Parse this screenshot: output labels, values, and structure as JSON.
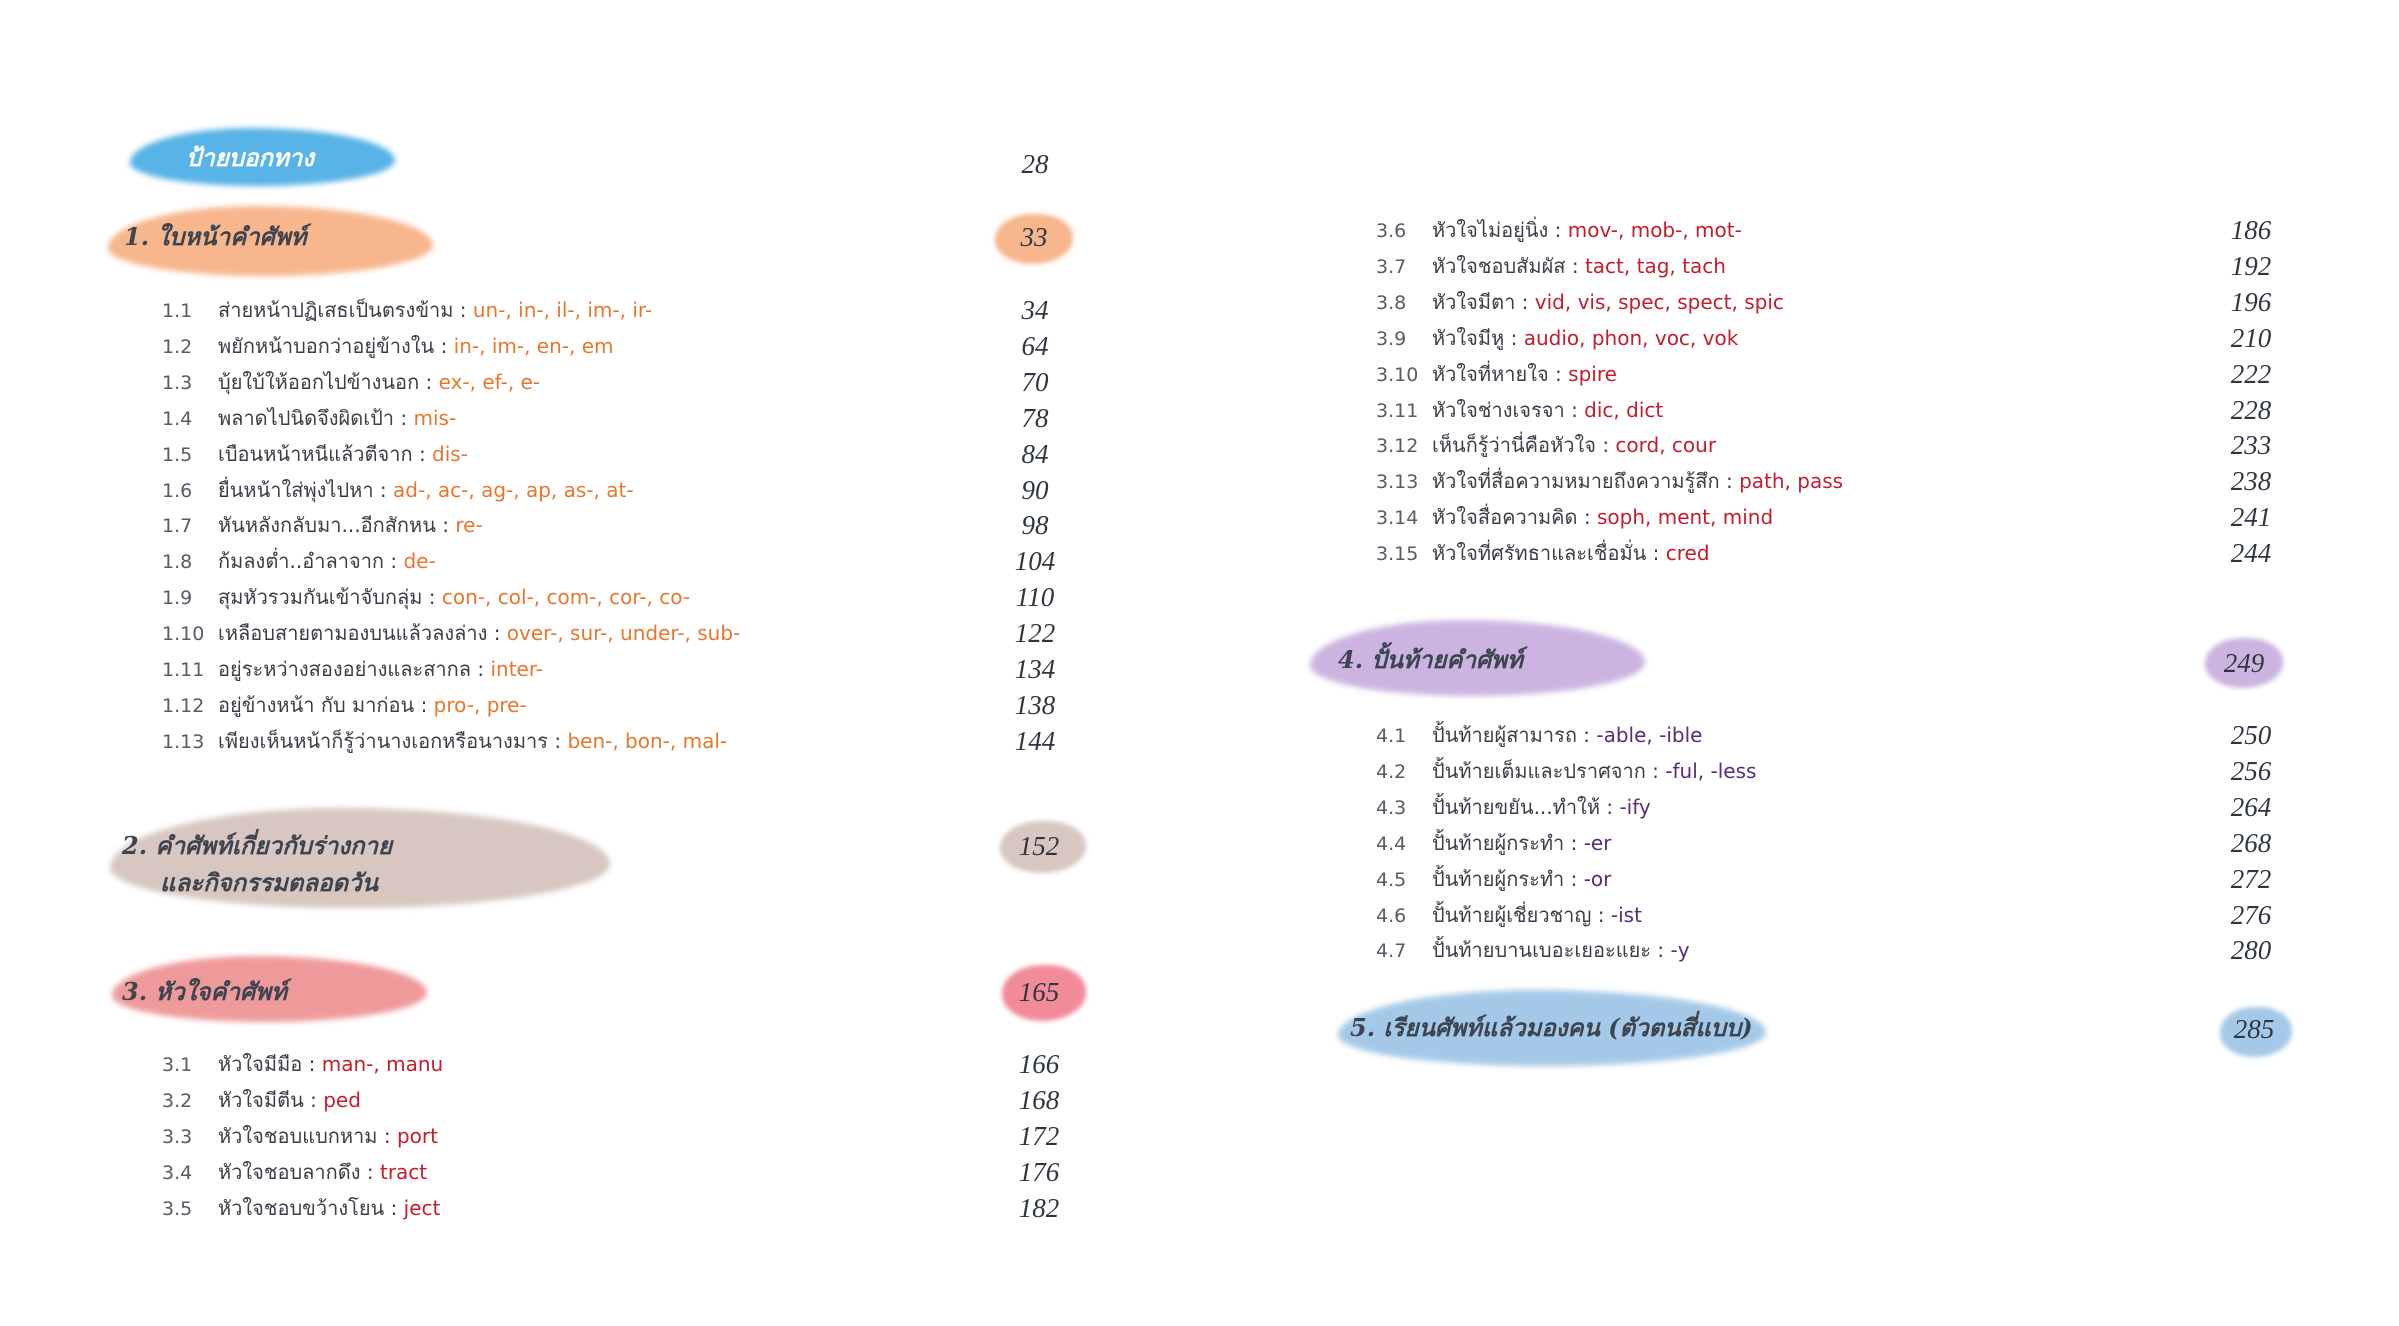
{
  "guide": {
    "title": "ป้ายบอกทาง",
    "page": "28"
  },
  "section1": {
    "title": "1. ใบหน้าคำศัพท์",
    "page": "33",
    "items": [
      {
        "num": "1.1",
        "th": "ส่ายหน้าปฏิเสธเป็นตรงข้าม",
        "suffix": "un-, in-, il-, im-, ir-",
        "page": "34"
      },
      {
        "num": "1.2",
        "th": "พยักหน้าบอกว่าอยู่ข้างใน",
        "suffix": "in-, im-, en-, em",
        "page": "64"
      },
      {
        "num": "1.3",
        "th": "บุ้ยใบ้ให้ออกไปข้างนอก",
        "suffix": "ex-, ef-, e-",
        "page": "70"
      },
      {
        "num": "1.4",
        "th": "พลาดไปนิดจึงผิดเป้า",
        "suffix": "mis-",
        "page": "78"
      },
      {
        "num": "1.5",
        "th": "เบือนหน้าหนีแล้วตีจาก",
        "suffix": "dis-",
        "page": "84"
      },
      {
        "num": "1.6",
        "th": "ยื่นหน้าใส่พุ่งไปหา",
        "suffix": "ad-, ac-, ag-, ap, as-, at-",
        "page": "90"
      },
      {
        "num": "1.7",
        "th": "หันหลังกลับมา...อีกสักหน",
        "suffix": "re-",
        "page": "98"
      },
      {
        "num": "1.8",
        "th": "ก้มลงต่ำ..อำลาจาก",
        "suffix": "de-",
        "page": "104"
      },
      {
        "num": "1.9",
        "th": "สุมหัวรวมกันเข้าจับกลุ่ม",
        "suffix": "con-, col-, com-, cor-, co-",
        "page": "110"
      },
      {
        "num": "1.10",
        "th": "เหลือบสายตามองบนแล้วลงล่าง",
        "suffix": "over-, sur-, under-, sub-",
        "page": "122"
      },
      {
        "num": "1.11",
        "th": "อยู่ระหว่างสองอย่างและสากล",
        "suffix": "inter-",
        "page": "134"
      },
      {
        "num": "1.12",
        "th": "อยู่ข้างหน้า กับ มาก่อน",
        "suffix": "pro-, pre-",
        "page": "138"
      },
      {
        "num": "1.13",
        "th": "เพียงเห็นหน้าก็รู้ว่านางเอกหรือนางมาร",
        "suffix": "ben-, bon-, mal-",
        "page": "144"
      }
    ]
  },
  "section2": {
    "title_line1": "2. คำศัพท์เกี่ยวกับร่างกาย",
    "title_line2": "และกิจกรรมตลอดวัน",
    "page": "152"
  },
  "section3": {
    "title": "3. หัวใจคำศัพท์",
    "page": "165",
    "items_left": [
      {
        "num": "3.1",
        "th": "หัวใจมีมือ",
        "suffix": "man-, manu",
        "page": "166"
      },
      {
        "num": "3.2",
        "th": "หัวใจมีตีน",
        "suffix": "ped",
        "page": "168"
      },
      {
        "num": "3.3",
        "th": "หัวใจชอบแบกหาม",
        "suffix": "port",
        "page": "172"
      },
      {
        "num": "3.4",
        "th": "หัวใจชอบลากดึง",
        "suffix": "tract",
        "page": "176"
      },
      {
        "num": "3.5",
        "th": "หัวใจชอบขว้างโยน",
        "suffix": "ject",
        "page": "182"
      }
    ],
    "items_right": [
      {
        "num": "3.6",
        "th": "หัวใจไม่อยู่นิ่ง",
        "suffix": "mov-, mob-, mot-",
        "page": "186"
      },
      {
        "num": "3.7",
        "th": "หัวใจชอบสัมผัส",
        "suffix": "tact, tag, tach",
        "page": "192"
      },
      {
        "num": "3.8",
        "th": "หัวใจมีตา",
        "suffix": "vid, vis, spec, spect, spic",
        "page": "196"
      },
      {
        "num": "3.9",
        "th": "หัวใจมีหู",
        "suffix": "audio, phon, voc, vok",
        "page": "210"
      },
      {
        "num": "3.10",
        "th": "หัวใจที่หายใจ",
        "suffix": "spire",
        "page": "222"
      },
      {
        "num": "3.11",
        "th": "หัวใจช่างเจรจา",
        "suffix": "dic, dict",
        "page": "228"
      },
      {
        "num": "3.12",
        "th": "เห็นก็รู้ว่านี่คือหัวใจ",
        "suffix": "cord, cour",
        "page": "233"
      },
      {
        "num": "3.13",
        "th": "หัวใจที่สื่อความหมายถึงความรู้สึก",
        "suffix": "path, pass",
        "page": "238"
      },
      {
        "num": "3.14",
        "th": "หัวใจสื่อความคิด",
        "suffix": "soph, ment, mind",
        "page": "241"
      },
      {
        "num": "3.15",
        "th": "หัวใจที่ศรัทธาและเชื่อมั่น",
        "suffix": "cred",
        "page": "244"
      }
    ]
  },
  "section4": {
    "title": "4. ปั้นท้ายคำศัพท์",
    "page": "249",
    "items": [
      {
        "num": "4.1",
        "th": "ปั้นท้ายผู้สามารถ",
        "suffix": "-able, -ible",
        "page": "250"
      },
      {
        "num": "4.2",
        "th": "ปั้นท้ายเต็มและปราศจาก",
        "suffix": "-ful, -less",
        "page": "256"
      },
      {
        "num": "4.3",
        "th": "ปั้นท้ายขยัน...ทำให้",
        "suffix": "-ify",
        "page": "264"
      },
      {
        "num": "4.4",
        "th": "ปั้นท้ายผู้กระทำ",
        "suffix": "-er",
        "page": "268"
      },
      {
        "num": "4.5",
        "th": "ปั้นท้ายผู้กระทำ",
        "suffix": "-or",
        "page": "272"
      },
      {
        "num": "4.6",
        "th": "ปั้นท้ายผู้เชี่ยวชาญ",
        "suffix": "-ist",
        "page": "276"
      },
      {
        "num": "4.7",
        "th": "ปั้นท้ายบานเบอะเยอะแยะ",
        "suffix": "-y",
        "page": "280"
      }
    ]
  },
  "section5": {
    "title": "5. เรียนศัพท์แล้วมองคน (ตัวตนสี่แบบ)",
    "page": "285"
  },
  "separator": ":",
  "colors": {
    "guide": "#58b3e6",
    "section1": "#f7b68c",
    "section2": "#d7c7c0",
    "section3": "#ef9a9a",
    "section4": "#cbb5e0",
    "section5": "#a4c9e8",
    "suffix_section1": "#e8772e",
    "suffix_section3": "#c21e2e",
    "suffix_section4": "#5a2d7a"
  }
}
